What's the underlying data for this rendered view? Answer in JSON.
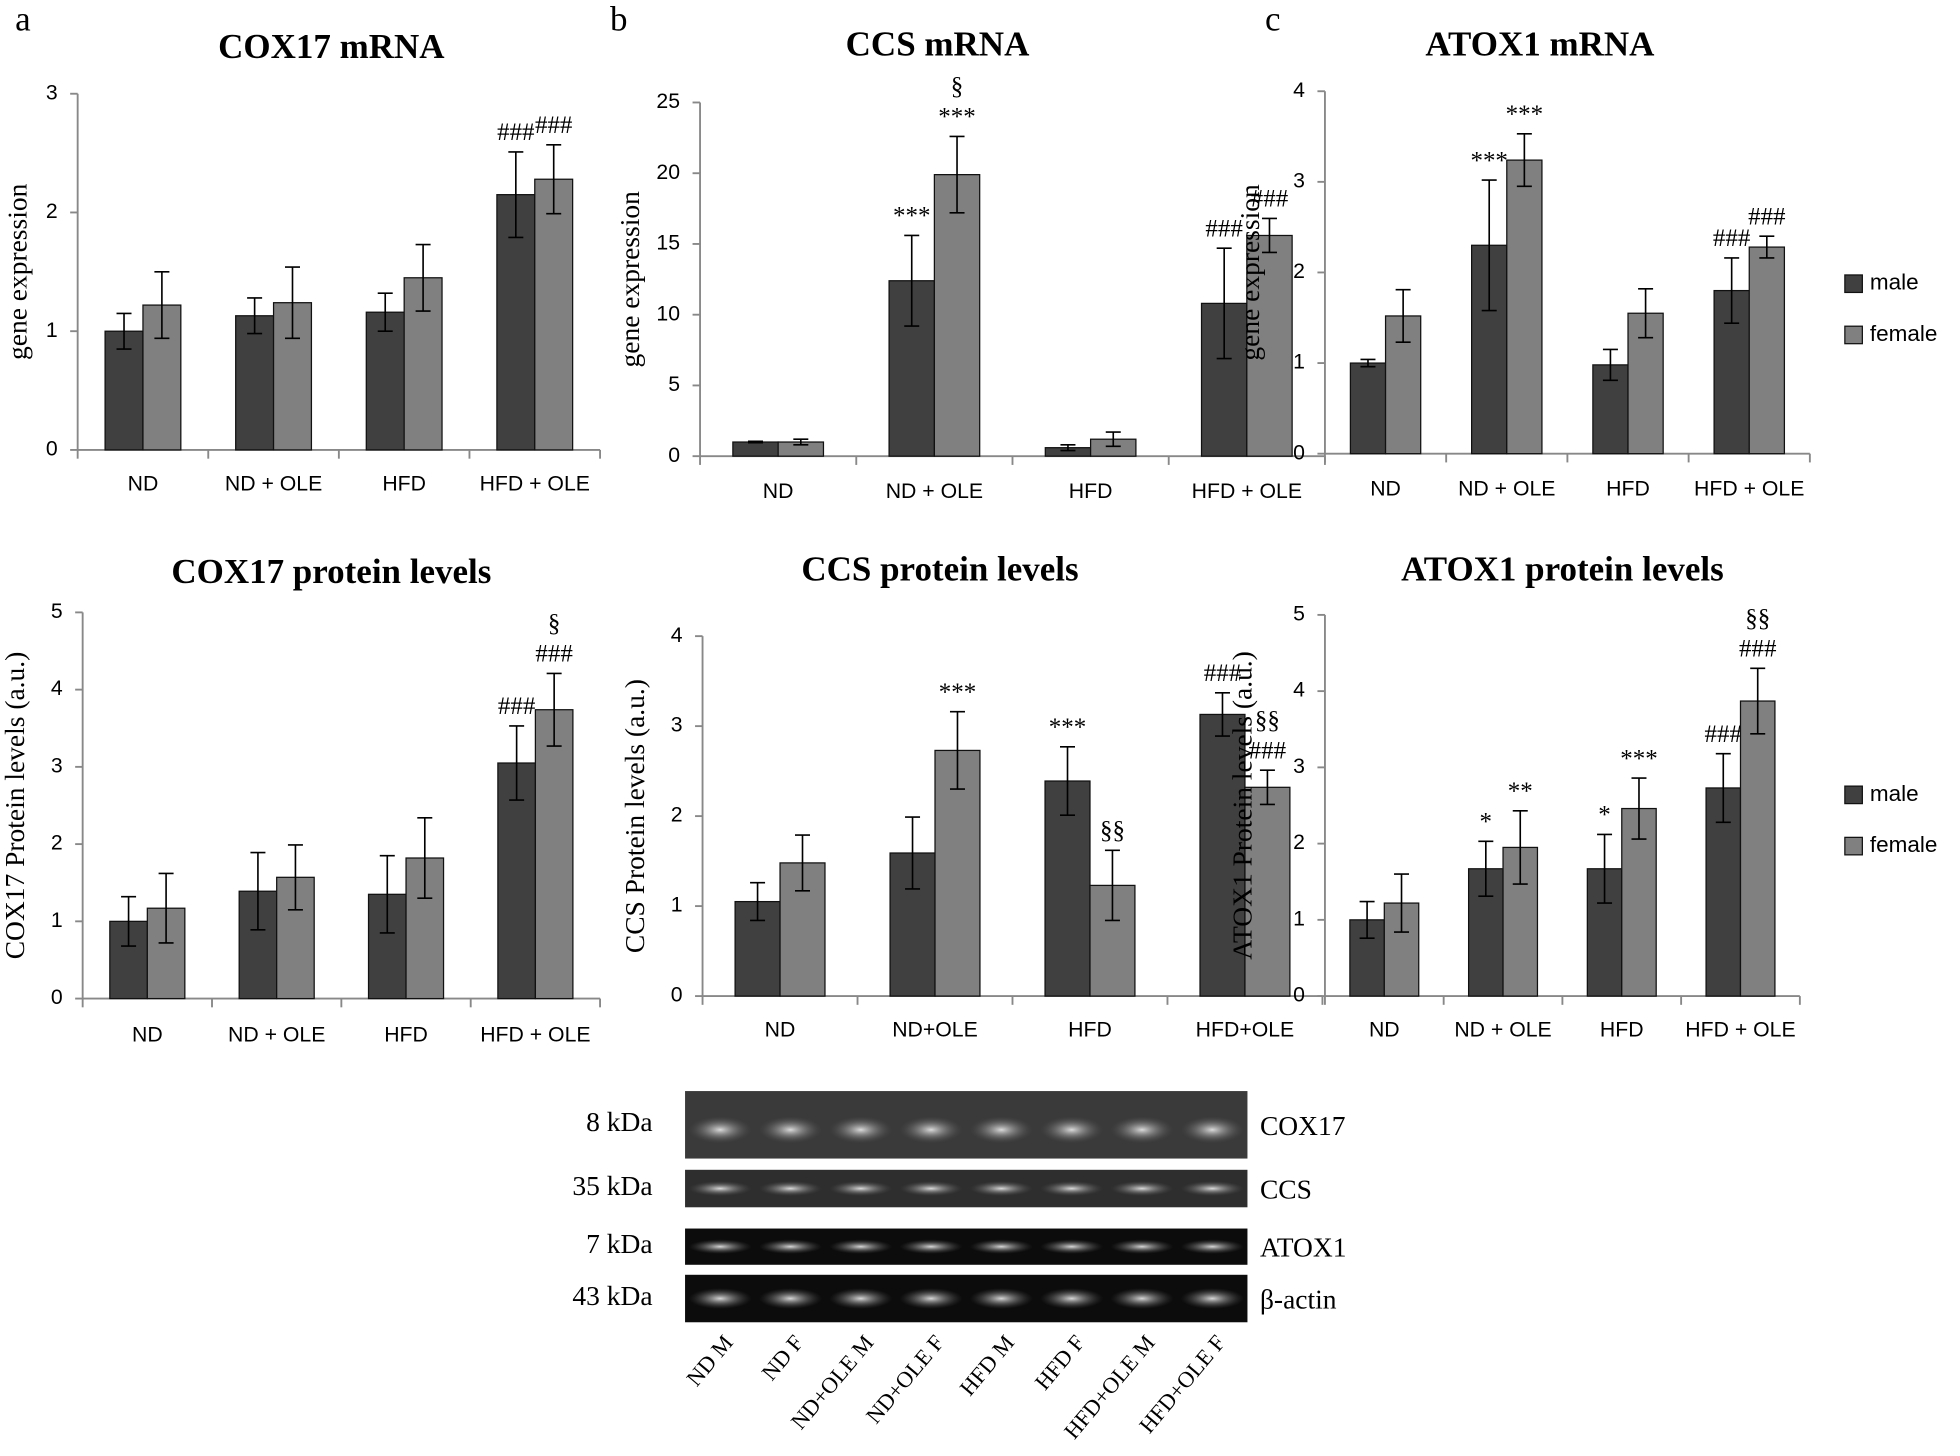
{
  "panels": [
    "a",
    "b",
    "c"
  ],
  "chart_data": [
    {
      "type": "bar",
      "title": "COX17 mRNA",
      "y_label": "gene expression",
      "categories": [
        "ND",
        "ND + OLE",
        "HFD",
        "HFD + OLE"
      ],
      "ylim": [
        0,
        3
      ],
      "yticks": [
        0,
        1,
        2,
        3
      ],
      "legend": false,
      "series": [
        {
          "color": "#404040",
          "values": [
            1.0,
            1.13,
            1.16,
            2.15
          ],
          "errors": [
            0.15,
            0.15,
            0.16,
            0.36
          ],
          "annotations": [
            null,
            null,
            null,
            [
              "###"
            ]
          ]
        },
        {
          "color": "#808080",
          "values": [
            1.22,
            1.24,
            1.45,
            2.28
          ],
          "errors": [
            0.28,
            0.3,
            0.28,
            0.29
          ],
          "annotations": [
            null,
            null,
            null,
            [
              "###"
            ]
          ]
        }
      ]
    },
    {
      "type": "bar",
      "title": "CCS mRNA",
      "y_label": "gene expression",
      "categories": [
        "ND",
        "ND + OLE",
        "HFD",
        "HFD + OLE"
      ],
      "ylim": [
        0,
        25
      ],
      "yticks": [
        0,
        5,
        10,
        15,
        20,
        25
      ],
      "legend": false,
      "series": [
        {
          "color": "#404040",
          "values": [
            1.0,
            12.4,
            0.6,
            10.8
          ],
          "errors": [
            0.05,
            3.2,
            0.2,
            3.9
          ],
          "annotations": [
            null,
            [
              "***"
            ],
            null,
            [
              "###"
            ]
          ]
        },
        {
          "color": "#808080",
          "values": [
            1.0,
            19.9,
            1.2,
            15.6
          ],
          "errors": [
            0.2,
            2.7,
            0.5,
            1.2
          ],
          "annotations": [
            null,
            [
              "§",
              "***"
            ],
            null,
            [
              "###"
            ]
          ]
        }
      ]
    },
    {
      "type": "bar",
      "title": "ATOX1 mRNA",
      "y_label": "gene expression",
      "categories": [
        "ND",
        "ND + OLE",
        "HFD",
        "HFD + OLE"
      ],
      "ylim": [
        0,
        4
      ],
      "yticks": [
        0,
        1,
        2,
        3,
        4
      ],
      "legend": true,
      "series": [
        {
          "name": "male",
          "color": "#404040",
          "values": [
            1.0,
            2.3,
            0.98,
            1.8
          ],
          "errors": [
            0.04,
            0.72,
            0.17,
            0.36
          ],
          "annotations": [
            null,
            [
              "***"
            ],
            null,
            [
              "###"
            ]
          ]
        },
        {
          "name": "female",
          "color": "#808080",
          "values": [
            1.52,
            3.24,
            1.55,
            2.28
          ],
          "errors": [
            0.29,
            0.29,
            0.27,
            0.12
          ],
          "annotations": [
            null,
            [
              "***"
            ],
            null,
            [
              "###"
            ]
          ]
        }
      ]
    },
    {
      "type": "bar",
      "title": "COX17 protein levels",
      "y_label": "COX17 Protein levels (a.u.)",
      "categories": [
        "ND",
        "ND + OLE",
        "HFD",
        "HFD + OLE"
      ],
      "ylim": [
        0,
        5
      ],
      "yticks": [
        0,
        1,
        2,
        3,
        4,
        5
      ],
      "legend": false,
      "series": [
        {
          "color": "#404040",
          "values": [
            1.0,
            1.39,
            1.35,
            3.05
          ],
          "errors": [
            0.32,
            0.5,
            0.5,
            0.48
          ],
          "annotations": [
            null,
            null,
            null,
            [
              "###"
            ]
          ]
        },
        {
          "color": "#808080",
          "values": [
            1.17,
            1.57,
            1.82,
            3.74
          ],
          "errors": [
            0.45,
            0.42,
            0.52,
            0.47
          ],
          "annotations": [
            null,
            null,
            null,
            [
              "§",
              "###"
            ]
          ]
        }
      ]
    },
    {
      "type": "bar",
      "title": "CCS protein levels",
      "y_label": "CCS Protein levels (a.u.)",
      "categories": [
        "ND",
        "ND+OLE",
        "HFD",
        "HFD+OLE"
      ],
      "ylim": [
        0,
        4
      ],
      "yticks": [
        0,
        1,
        2,
        3,
        4
      ],
      "legend": false,
      "series": [
        {
          "color": "#404040",
          "values": [
            1.05,
            1.59,
            2.39,
            3.13
          ],
          "errors": [
            0.21,
            0.4,
            0.38,
            0.24
          ],
          "annotations": [
            null,
            null,
            [
              "***"
            ],
            [
              "###"
            ]
          ]
        },
        {
          "color": "#808080",
          "values": [
            1.48,
            2.73,
            1.23,
            2.32
          ],
          "errors": [
            0.31,
            0.43,
            0.39,
            0.19
          ],
          "annotations": [
            null,
            [
              "***"
            ],
            [
              "§§"
            ],
            [
              "§§",
              "###"
            ]
          ]
        }
      ]
    },
    {
      "type": "bar",
      "title": "ATOX1 protein levels",
      "y_label": "ATOX1 Protein levels (a.u.)",
      "categories": [
        "ND",
        "ND + OLE",
        "HFD",
        "HFD + OLE"
      ],
      "ylim": [
        0,
        5
      ],
      "yticks": [
        0,
        1,
        2,
        3,
        4,
        5
      ],
      "legend": true,
      "series": [
        {
          "name": "male",
          "color": "#404040",
          "values": [
            1.0,
            1.67,
            1.67,
            2.73
          ],
          "errors": [
            0.24,
            0.36,
            0.45,
            0.45
          ],
          "annotations": [
            null,
            [
              "*"
            ],
            [
              "*"
            ],
            [
              "###"
            ]
          ]
        },
        {
          "name": "female",
          "color": "#808080",
          "values": [
            1.22,
            1.95,
            2.46,
            3.87
          ],
          "errors": [
            0.38,
            0.48,
            0.4,
            0.43
          ],
          "annotations": [
            null,
            [
              "**"
            ],
            [
              "***"
            ],
            [
              "§§",
              "###"
            ]
          ]
        }
      ]
    }
  ],
  "blot": {
    "rows": [
      {
        "size": "8 kDa",
        "protein": "COX17"
      },
      {
        "size": "35 kDa",
        "protein": "CCS"
      },
      {
        "size": "7 kDa",
        "protein": "ATOX1"
      },
      {
        "size": "43 kDa",
        "protein": "β-actin"
      }
    ],
    "lanes": [
      "ND M",
      "ND F",
      "ND+OLE M",
      "ND+OLE F",
      "HFD M",
      "HFD F",
      "HFD+OLE M",
      "HFD+OLE F"
    ]
  }
}
